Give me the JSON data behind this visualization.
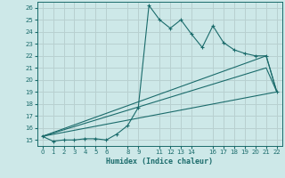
{
  "xlabel": "Humidex (Indice chaleur)",
  "bg_color": "#cde8e8",
  "grid_color": "#b8d0d0",
  "line_color": "#1a6b6b",
  "xlim": [
    -0.5,
    22.5
  ],
  "ylim": [
    14.5,
    26.5
  ],
  "xticks": [
    0,
    1,
    2,
    3,
    4,
    5,
    6,
    8,
    9,
    11,
    12,
    13,
    14,
    16,
    17,
    18,
    19,
    20,
    21,
    22
  ],
  "yticks": [
    15,
    16,
    17,
    18,
    19,
    20,
    21,
    22,
    23,
    24,
    25,
    26
  ],
  "line1_x": [
    0,
    1,
    2,
    3,
    4,
    5,
    6,
    7,
    8,
    9,
    10,
    11,
    12,
    13,
    14,
    15,
    16,
    17,
    18,
    19,
    20,
    21,
    22
  ],
  "line1_y": [
    15.3,
    14.9,
    15.0,
    15.0,
    15.1,
    15.1,
    15.0,
    15.5,
    16.2,
    17.7,
    26.2,
    25.0,
    24.3,
    25.0,
    23.8,
    22.7,
    24.5,
    23.1,
    22.5,
    22.2,
    22.0,
    22.0,
    19.0
  ],
  "line2_x": [
    0,
    21,
    22
  ],
  "line2_y": [
    15.3,
    22.0,
    19.0
  ],
  "line3_x": [
    0,
    21,
    22
  ],
  "line3_y": [
    15.3,
    21.0,
    19.0
  ],
  "line4_x": [
    0,
    22
  ],
  "line4_y": [
    15.3,
    19.0
  ]
}
